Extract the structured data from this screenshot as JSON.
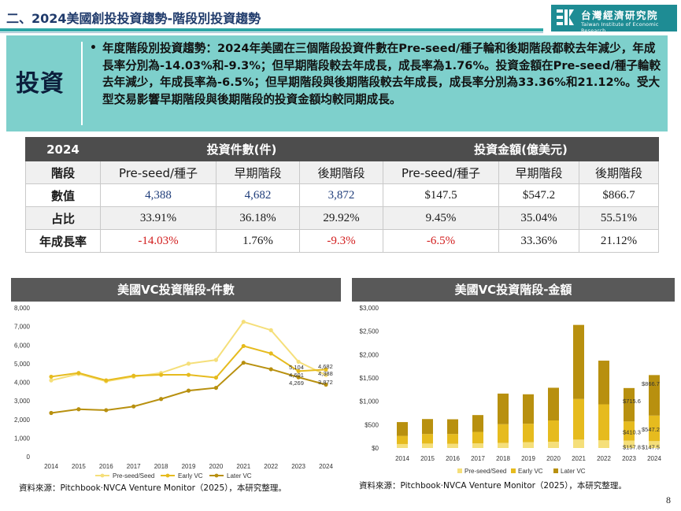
{
  "header": {
    "title": "二、2024美國創投投資趨勢-階段別投資趨勢",
    "logo_cn": "台灣經濟研究院",
    "logo_en": "Taiwan Institute of Economic Research"
  },
  "summary": {
    "label": "投資",
    "bullet": "•",
    "text": "年度階段別投資趨勢：2024年美國在三個階段投資件數在Pre-seed/種子輪和後期階段都較去年減少，年成長率分別為-14.03%和-9.3%；但早期階段較去年成長，成長率為1.76%。投資金額在Pre-seed/種子輪較去年減少，年成長率為-6.5%；但早期階段與後期階段較去年成長，成長率分別為33.36%和21.12%。受大型交易影響早期階段與後期階段的投資金額均較同期成長。"
  },
  "table": {
    "corner": "2024",
    "group_count": "投資件數(件)",
    "group_amount": "投資金額(億美元)",
    "rows": {
      "stage": {
        "label": "階段",
        "cells": [
          "Pre-seed/種子",
          "早期階段",
          "後期階段",
          "Pre-seed/種子",
          "早期階段",
          "後期階段"
        ]
      },
      "value": {
        "label": "數值",
        "cells": [
          "4,388",
          "4,682",
          "3,872",
          "$147.5",
          "$547.2",
          "$866.7"
        ]
      },
      "share": {
        "label": "占比",
        "cells": [
          "33.91%",
          "36.18%",
          "29.92%",
          "9.45%",
          "35.04%",
          "55.51%"
        ]
      },
      "growth": {
        "label": "年成長率",
        "cells": [
          "-14.03%",
          "1.76%",
          "-9.3%",
          "-6.5%",
          "33.36%",
          "21.12%"
        ]
      }
    }
  },
  "colors": {
    "preseed": "#f5df7a",
    "early": "#e6bb1e",
    "later": "#b8900f",
    "header_dark": "#4d4d4d",
    "teal": "#7ed0cc"
  },
  "chart_data": [
    {
      "type": "line",
      "title": "美國VC投資階段-件數",
      "x": [
        "2014",
        "2015",
        "2016",
        "2017",
        "2018",
        "2019",
        "2020",
        "2021",
        "2022",
        "2023",
        "2024"
      ],
      "ylim": [
        0,
        8000
      ],
      "yticks": [
        "0",
        "1,000",
        "2,000",
        "3,000",
        "4,000",
        "5,000",
        "6,000",
        "7,000",
        "8,000"
      ],
      "series": [
        {
          "name": "Pre-seed/Seed",
          "color": "#f5df7a",
          "values": [
            4100,
            4450,
            4050,
            4300,
            4500,
            5000,
            5200,
            7250,
            6800,
            5104,
            4388
          ]
        },
        {
          "name": "Early VC",
          "color": "#e6bb1e",
          "values": [
            4300,
            4500,
            4100,
            4350,
            4400,
            4400,
            4250,
            5950,
            5550,
            4601,
            4682
          ]
        },
        {
          "name": "Later VC",
          "color": "#b8900f",
          "values": [
            2350,
            2550,
            2500,
            2700,
            3100,
            3550,
            3700,
            5050,
            4700,
            4269,
            3872
          ]
        }
      ],
      "labels_2023": [
        "5,104",
        "4,601",
        "4,269"
      ],
      "labels_2024": [
        "4,682",
        "4,388",
        "3,872"
      ],
      "source": "資料來源：Pitchbook‧NVCA Venture Monitor（2025），本研究整理。"
    },
    {
      "type": "bar",
      "stacked": true,
      "title": "美國VC投資階段-金額",
      "categories": [
        "2014",
        "2015",
        "2016",
        "2017",
        "2018",
        "2019",
        "2020",
        "2021",
        "2022",
        "2023",
        "2024"
      ],
      "ylim": [
        0,
        3000
      ],
      "yticks": [
        "$0",
        "$500",
        "$1,000",
        "$1,500",
        "$2,000",
        "$2,500",
        "$3,000"
      ],
      "series": [
        {
          "name": "Pre-seed/Seed",
          "color": "#f5df7a",
          "values": [
            85,
            95,
            90,
            100,
            110,
            125,
            135,
            180,
            165,
            157.8,
            147.5
          ]
        },
        {
          "name": "Early VC",
          "color": "#e6bb1e",
          "values": [
            175,
            205,
            210,
            245,
            400,
            395,
            455,
            870,
            770,
            410.3,
            547.2
          ]
        },
        {
          "name": "Later VC",
          "color": "#b8900f",
          "values": [
            295,
            320,
            315,
            360,
            655,
            630,
            700,
            1585,
            935,
            715.6,
            866.7
          ]
        }
      ],
      "labels_2023": [
        "$715.6",
        "$410.3",
        "$157.8"
      ],
      "labels_2024": [
        "$866.7",
        "$547.2",
        "$147.5"
      ],
      "source": "資料來源：Pitchbook‧NVCA Venture Monitor（2025），本研究整理。"
    }
  ],
  "page": {
    "number": "8"
  }
}
